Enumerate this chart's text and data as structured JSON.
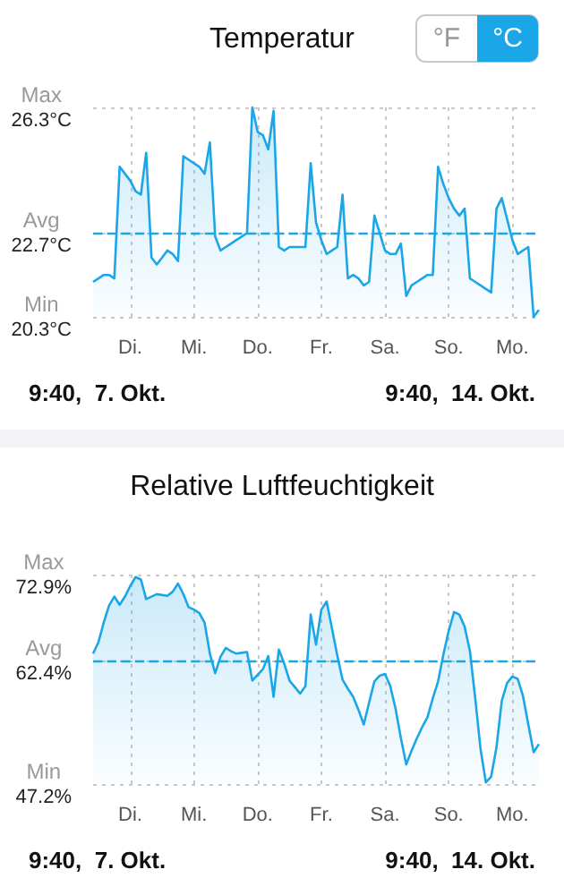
{
  "chart_data": [
    {
      "type": "area",
      "title": "Temperatur",
      "annotations": [
        "9:40,  7. Okt.",
        "9:40,  14. Okt.",
        "°F",
        "°C",
        "Max",
        "Avg",
        "Min"
      ],
      "categories": [
        null,
        null,
        null,
        null,
        null,
        null,
        null,
        "Di.",
        null,
        null,
        null,
        null,
        null,
        null,
        null,
        null,
        null,
        null,
        null,
        "Mi.",
        null,
        null,
        null,
        null,
        null,
        null,
        null,
        null,
        null,
        null,
        null,
        "Do.",
        null,
        null,
        null,
        null,
        null,
        null,
        null,
        null,
        null,
        null,
        null,
        "Fr.",
        null,
        null,
        null,
        null,
        null,
        null,
        null,
        null,
        null,
        null,
        null,
        "Sa.",
        null,
        null,
        null,
        null,
        null,
        null,
        null,
        null,
        null,
        null,
        null,
        "So.",
        null,
        null,
        null,
        null,
        null,
        null,
        null,
        null,
        null,
        null,
        null,
        "Mo.",
        null,
        null,
        null,
        null,
        null
      ],
      "series": [
        {
          "color": "#1ba6e8",
          "values": [
            21.3,
            21.4,
            21.5,
            21.5,
            21.4,
            24.6,
            24.4,
            24.2,
            23.9,
            23.8,
            25.0,
            22.0,
            21.8,
            22.0,
            22.2,
            22.1,
            21.9,
            24.9,
            24.8,
            24.7,
            24.6,
            24.4,
            25.3,
            22.6,
            22.2,
            22.3,
            22.4,
            22.5,
            22.6,
            22.7,
            26.3,
            25.6,
            25.5,
            25.1,
            26.2,
            22.3,
            22.2,
            22.3,
            22.3,
            22.3,
            22.3,
            24.7,
            23.0,
            22.5,
            22.1,
            22.2,
            22.3,
            23.8,
            21.4,
            21.5,
            21.4,
            21.2,
            21.3,
            23.2,
            22.7,
            22.2,
            22.1,
            22.1,
            22.4,
            20.9,
            21.2,
            21.3,
            21.4,
            21.5,
            21.5,
            24.6,
            24.1,
            23.7,
            23.4,
            23.2,
            23.4,
            21.4,
            21.3,
            21.2,
            21.1,
            21.0,
            23.4,
            23.7,
            23.1,
            22.5,
            22.1,
            22.2,
            22.3,
            20.3,
            20.5
          ]
        }
      ],
      "ylim": [
        20.3,
        26.3
      ],
      "yticks": [
        {
          "value": 20.3,
          "label": "20.3°C"
        },
        {
          "value": 22.7,
          "label": "22.7°C"
        },
        {
          "value": 26.3,
          "label": "26.3°C"
        }
      ],
      "ref_lines": [
        {
          "axis": "y",
          "value": 22.7,
          "color": "#1ba6e8",
          "line_style": "dashed"
        }
      ],
      "grid": true
    },
    {
      "type": "area",
      "title": "Relative Luftfeuchtigkeit",
      "annotations": [
        "9:40,  7. Okt.",
        "9:40,  14. Okt.",
        "Max",
        "Avg",
        "Min"
      ],
      "categories": [
        null,
        null,
        null,
        null,
        null,
        null,
        null,
        "Di.",
        null,
        null,
        null,
        null,
        null,
        null,
        null,
        null,
        null,
        null,
        null,
        "Mi.",
        null,
        null,
        null,
        null,
        null,
        null,
        null,
        null,
        null,
        null,
        null,
        "Do.",
        null,
        null,
        null,
        null,
        null,
        null,
        null,
        null,
        null,
        null,
        null,
        "Fr.",
        null,
        null,
        null,
        null,
        null,
        null,
        null,
        null,
        null,
        null,
        null,
        "Sa.",
        null,
        null,
        null,
        null,
        null,
        null,
        null,
        null,
        null,
        null,
        null,
        "So.",
        null,
        null,
        null,
        null,
        null,
        null,
        null,
        null,
        null,
        null,
        null,
        "Mo.",
        null,
        null,
        null,
        null,
        null
      ],
      "series": [
        {
          "color": "#1ba6e8",
          "values": [
            63.2,
            64.6,
            67.0,
            69.1,
            70.2,
            69.2,
            70.2,
            71.5,
            72.6,
            72.3,
            69.9,
            70.2,
            70.5,
            70.4,
            70.3,
            70.8,
            71.8,
            70.5,
            68.9,
            68.6,
            68.2,
            67.0,
            63.2,
            60.8,
            62.8,
            63.9,
            63.5,
            63.2,
            63.3,
            63.4,
            59.9,
            60.6,
            61.3,
            62.9,
            57.9,
            63.7,
            62.0,
            59.9,
            59.1,
            58.3,
            59.2,
            68.0,
            64.3,
            68.6,
            69.6,
            66.3,
            63.0,
            60.0,
            58.9,
            57.9,
            56.3,
            54.5,
            57.2,
            59.8,
            60.5,
            60.7,
            59.2,
            56.4,
            52.8,
            49.6,
            51.3,
            52.8,
            54.2,
            55.4,
            57.7,
            59.8,
            63.1,
            66.0,
            68.3,
            68.0,
            66.5,
            63.5,
            57.7,
            51.5,
            47.4,
            48.1,
            51.7,
            57.4,
            59.6,
            60.4,
            60.1,
            58.0,
            54.5,
            51.1,
            52.1
          ]
        }
      ],
      "ylim": [
        47.2,
        72.9
      ],
      "yticks": [
        {
          "value": 47.2,
          "label": "47.2%"
        },
        {
          "value": 62.4,
          "label": "62.4%"
        },
        {
          "value": 72.9,
          "label": "72.9%"
        }
      ],
      "ref_lines": [
        {
          "axis": "y",
          "value": 62.4,
          "color": "#1ba6e8",
          "line_style": "dashed"
        }
      ],
      "grid": true
    }
  ]
}
